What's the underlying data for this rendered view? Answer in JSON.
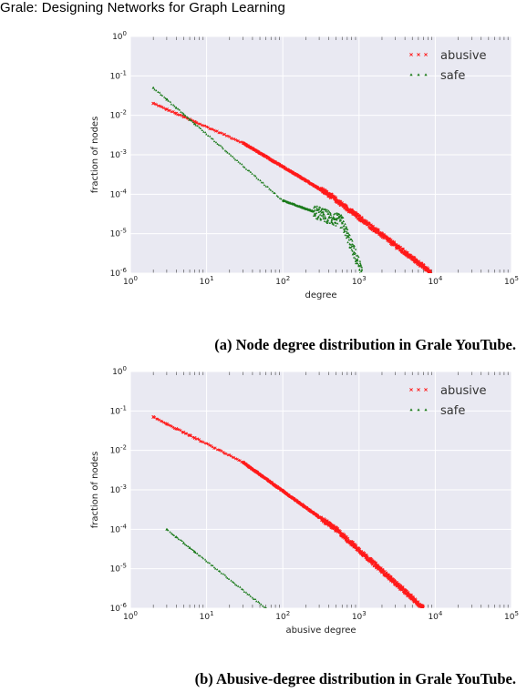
{
  "header": {
    "running_title": "Grale: Designing Networks for Graph Learning"
  },
  "colors": {
    "abusive": "#ff1a1a",
    "safe": "#1a7a1a",
    "plot_bg": "#e9e9f2",
    "grid": "#ffffff"
  },
  "chart_data": [
    {
      "type": "scatter",
      "caption": "(a) Node degree distribution in Grale YouTube.",
      "xlabel": "degree",
      "ylabel": "fraction of nodes",
      "xscale": "log",
      "yscale": "log",
      "xlim": [
        1,
        100000
      ],
      "ylim": [
        1e-06,
        1
      ],
      "grid": true,
      "legend_position": "top-right",
      "x_ticks": [
        "10^0",
        "10^1",
        "10^2",
        "10^3",
        "10^4",
        "10^5"
      ],
      "y_ticks": [
        "10^0",
        "10^-1",
        "10^-2",
        "10^-3",
        "10^-4",
        "10^-5",
        "10^-6"
      ],
      "series": [
        {
          "name": "abusive",
          "marker": "x",
          "color_key": "abusive",
          "segments": [
            {
              "from": [
                2,
                0.02
              ],
              "to": [
                30,
                0.002
              ]
            },
            {
              "from": [
                30,
                0.002
              ],
              "to": [
                400,
                0.0001
              ]
            },
            {
              "from": [
                400,
                0.0001
              ],
              "to": [
                9000,
                1e-06
              ]
            }
          ]
        },
        {
          "name": "safe",
          "marker": "^",
          "color_key": "safe",
          "segments": [
            {
              "from": [
                2,
                0.05
              ],
              "to": [
                100,
                7e-05
              ]
            },
            {
              "from": [
                100,
                7e-05
              ],
              "to": [
                600,
                2e-05
              ]
            },
            {
              "from": [
                600,
                2e-05
              ],
              "to": [
                1100,
                1e-06
              ]
            }
          ]
        }
      ]
    },
    {
      "type": "scatter",
      "caption": "(b) Abusive-degree distribution in Grale YouTube.",
      "xlabel": "abusive degree",
      "ylabel": "fraction of nodes",
      "xscale": "log",
      "yscale": "log",
      "xlim": [
        1,
        100000
      ],
      "ylim": [
        1e-06,
        1
      ],
      "grid": true,
      "legend_position": "top-right",
      "x_ticks": [
        "10^0",
        "10^1",
        "10^2",
        "10^3",
        "10^4",
        "10^5"
      ],
      "y_ticks": [
        "10^0",
        "10^-1",
        "10^-2",
        "10^-3",
        "10^-4",
        "10^-5",
        "10^-6"
      ],
      "series": [
        {
          "name": "abusive",
          "marker": "x",
          "color_key": "abusive",
          "segments": [
            {
              "from": [
                2,
                0.07
              ],
              "to": [
                30,
                0.005
              ]
            },
            {
              "from": [
                30,
                0.005
              ],
              "to": [
                500,
                0.0001
              ]
            },
            {
              "from": [
                500,
                0.0001
              ],
              "to": [
                7000,
                1e-06
              ]
            }
          ]
        },
        {
          "name": "safe",
          "marker": "^",
          "color_key": "safe",
          "segments": [
            {
              "from": [
                3,
                0.0001
              ],
              "to": [
                60,
                1e-06
              ]
            }
          ]
        }
      ]
    }
  ]
}
